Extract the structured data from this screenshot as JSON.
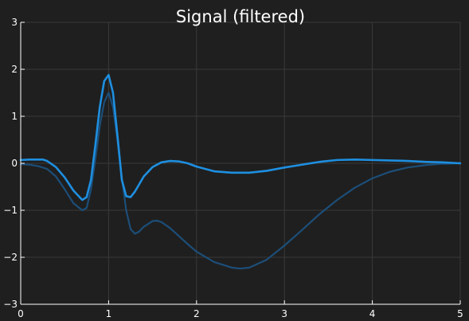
{
  "chart_data": {
    "type": "line",
    "title": "Signal (filtered)",
    "xlabel": "",
    "ylabel": "",
    "xlim": [
      0,
      5
    ],
    "ylim": [
      -3,
      3
    ],
    "xticks": [
      0,
      1,
      2,
      3,
      4,
      5
    ],
    "yticks": [
      -3,
      -2,
      -1,
      0,
      1,
      2,
      3
    ],
    "grid": true,
    "colors": {
      "background": "#1f1f1f",
      "grid": "#3a3a3a",
      "axes": "#ffffff",
      "filtered": "#1e8fe0",
      "raw": "#1c4e78"
    },
    "series": [
      {
        "role": "raw",
        "color": "#1c4e78",
        "x": [
          0,
          0.1,
          0.2,
          0.3,
          0.4,
          0.5,
          0.6,
          0.7,
          0.75,
          0.8,
          0.85,
          0.9,
          0.95,
          1.0,
          1.05,
          1.1,
          1.15,
          1.2,
          1.25,
          1.3,
          1.35,
          1.4,
          1.5,
          1.55,
          1.6,
          1.7,
          1.8,
          1.9,
          2.0,
          2.2,
          2.4,
          2.5,
          2.6,
          2.8,
          3.0,
          3.2,
          3.4,
          3.6,
          3.8,
          4.0,
          4.2,
          4.4,
          4.6,
          4.8,
          5.0
        ],
        "y": [
          -0.02,
          -0.03,
          -0.06,
          -0.12,
          -0.28,
          -0.55,
          -0.85,
          -1.0,
          -0.95,
          -0.55,
          0.1,
          0.8,
          1.3,
          1.5,
          1.2,
          0.5,
          -0.3,
          -1.0,
          -1.4,
          -1.5,
          -1.45,
          -1.35,
          -1.23,
          -1.22,
          -1.25,
          -1.38,
          -1.55,
          -1.72,
          -1.88,
          -2.1,
          -2.22,
          -2.24,
          -2.22,
          -2.05,
          -1.75,
          -1.42,
          -1.08,
          -0.78,
          -0.52,
          -0.32,
          -0.18,
          -0.09,
          -0.04,
          -0.01,
          0.0
        ]
      },
      {
        "role": "filtered",
        "color": "#1e8fe0",
        "x": [
          0,
          0.1,
          0.2,
          0.25,
          0.3,
          0.4,
          0.5,
          0.6,
          0.7,
          0.75,
          0.8,
          0.85,
          0.9,
          0.95,
          1.0,
          1.05,
          1.1,
          1.15,
          1.2,
          1.25,
          1.3,
          1.4,
          1.5,
          1.6,
          1.7,
          1.8,
          1.9,
          2.0,
          2.2,
          2.4,
          2.6,
          2.8,
          3.0,
          3.2,
          3.4,
          3.6,
          3.8,
          4.0,
          4.2,
          4.4,
          4.6,
          4.8,
          5.0
        ],
        "y": [
          0.07,
          0.08,
          0.08,
          0.08,
          0.05,
          -0.08,
          -0.3,
          -0.58,
          -0.78,
          -0.72,
          -0.35,
          0.4,
          1.2,
          1.75,
          1.88,
          1.5,
          0.6,
          -0.35,
          -0.7,
          -0.72,
          -0.6,
          -0.28,
          -0.08,
          0.02,
          0.05,
          0.04,
          0.0,
          -0.07,
          -0.17,
          -0.2,
          -0.2,
          -0.16,
          -0.09,
          -0.03,
          0.03,
          0.07,
          0.08,
          0.07,
          0.06,
          0.05,
          0.03,
          0.02,
          0.0
        ]
      }
    ]
  }
}
